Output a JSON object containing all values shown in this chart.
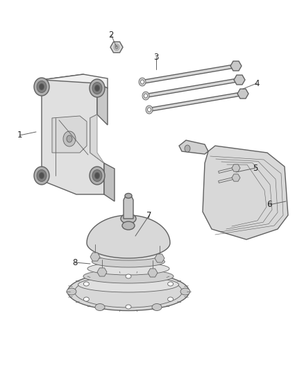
{
  "background_color": "#ffffff",
  "line_color": "#606060",
  "label_color": "#222222",
  "figsize": [
    4.38,
    5.33
  ],
  "dpi": 100,
  "fill_light": "#e8e8e8",
  "fill_mid": "#d0d0d0",
  "fill_dark": "#b8b8b8",
  "fill_white": "#f5f5f5"
}
